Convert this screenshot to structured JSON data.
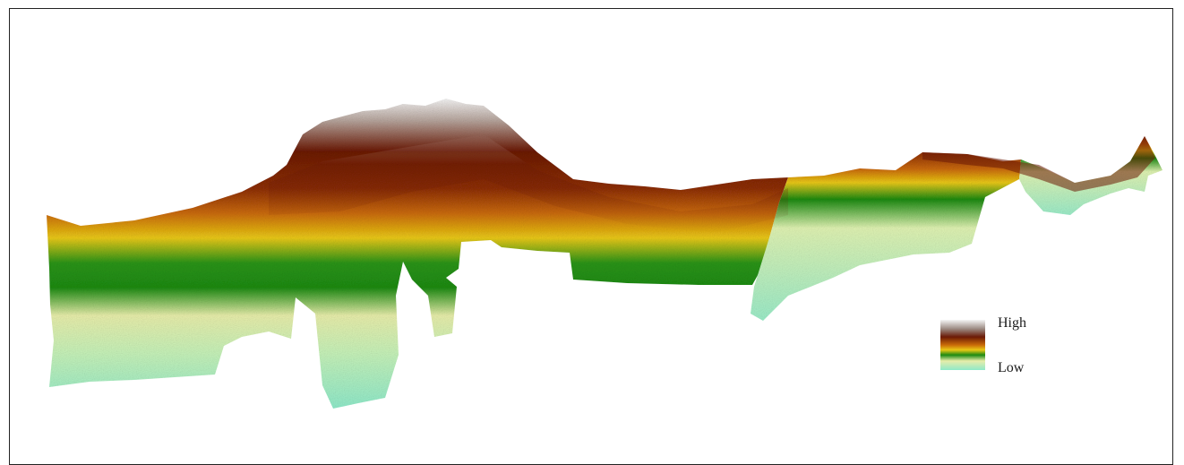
{
  "map": {
    "type": "elevation-relief",
    "color_ramp": {
      "high": "#f4f4f4",
      "upper": "#6b1a06",
      "mid_upper": "#c96a08",
      "mid": "#e9c816",
      "mid_lower": "#1d8a12",
      "lower": "#f1eaa4",
      "low": "#8fe9c9"
    }
  },
  "legend": {
    "high_label": "High",
    "low_label": "Low"
  }
}
